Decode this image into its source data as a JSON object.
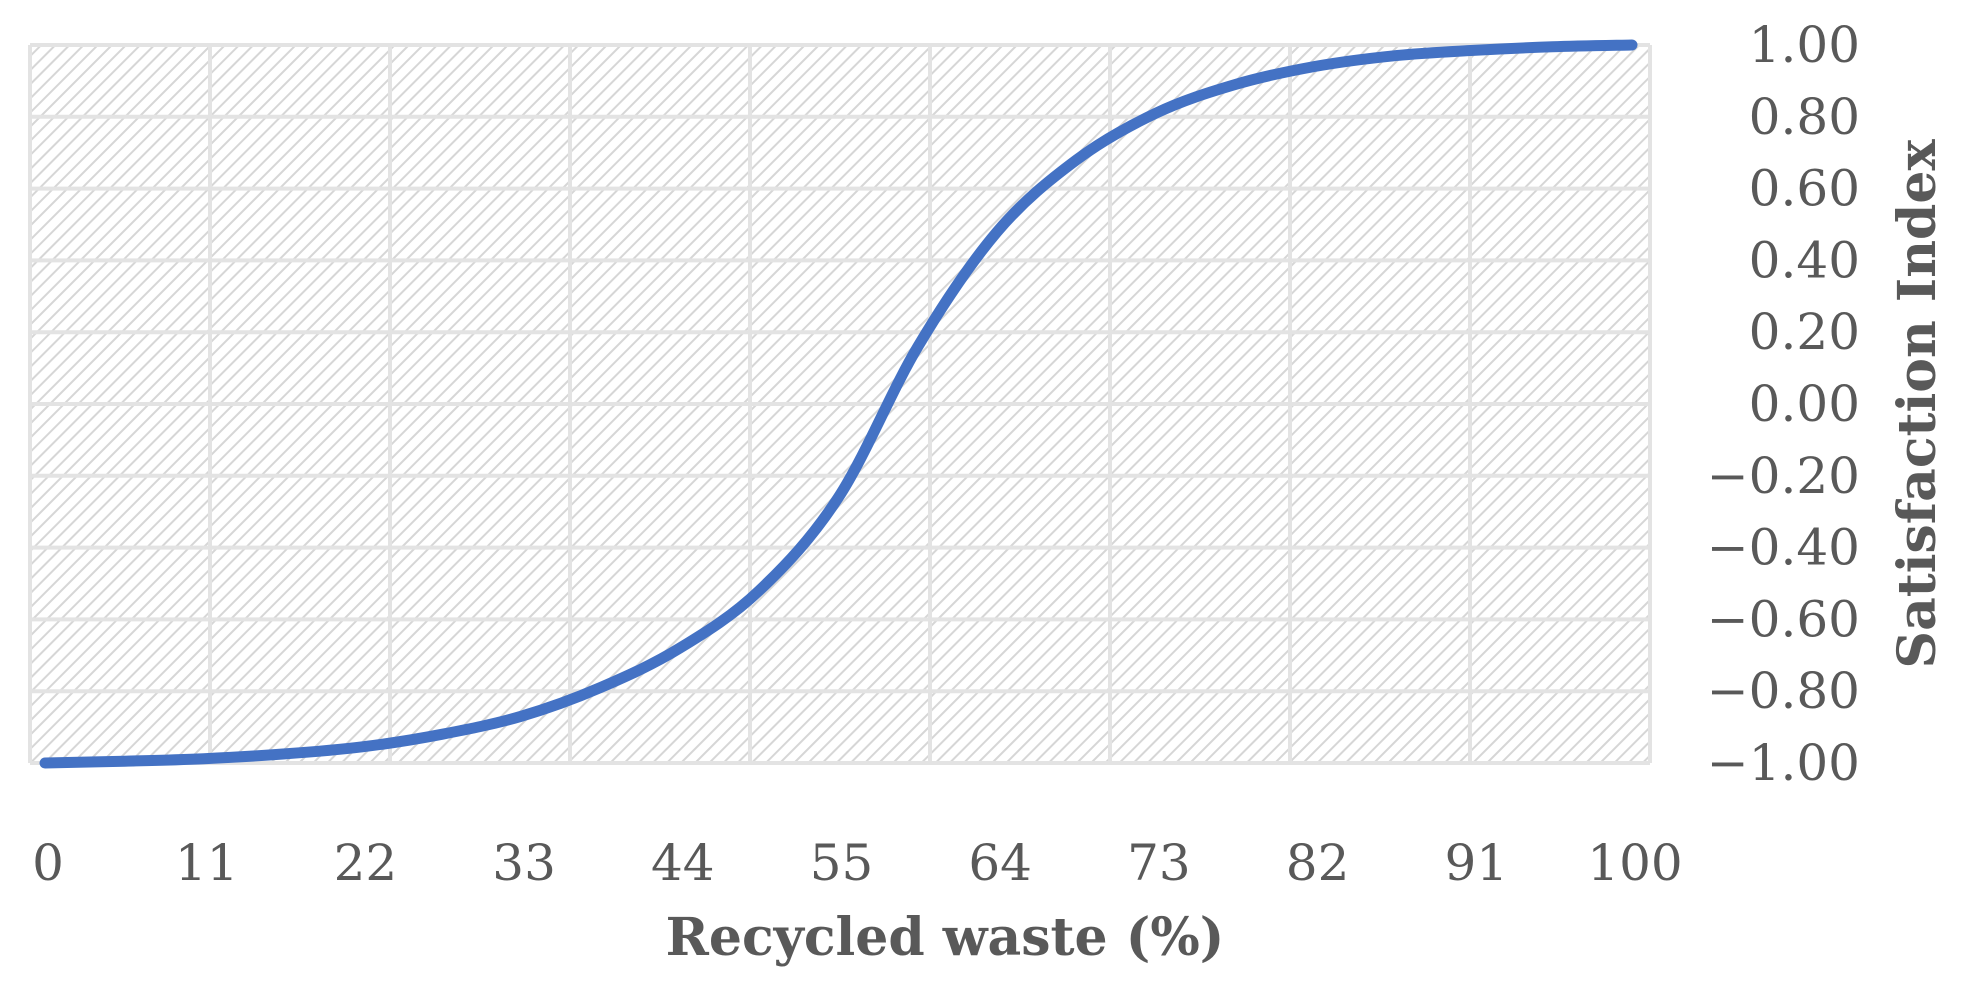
{
  "chart_data": {
    "type": "line",
    "title": "",
    "xlabel": "Recycled waste (%)",
    "ylabel": "Satisfaction Index",
    "x_ticks": [
      "0",
      "11",
      "22",
      "33",
      "44",
      "55",
      "64",
      "73",
      "82",
      "91",
      "100"
    ],
    "y_ticks": [
      "1.00",
      "0.80",
      "0.60",
      "0.40",
      "0.20",
      "0.00",
      "−0.20",
      "−0.40",
      "−0.60",
      "−0.80",
      "−1.00"
    ],
    "ylim": [
      -1.0,
      1.0
    ],
    "xlim": [
      0,
      100
    ],
    "y_axis_position": "right",
    "grid": true,
    "plot_background": "diagonal-hatch",
    "series": [
      {
        "color": "#4472C4",
        "x": [
          0,
          5,
          10,
          15,
          20,
          25,
          30,
          35,
          40,
          45,
          50,
          55,
          60,
          65,
          70,
          75,
          80,
          85,
          90,
          95,
          100
        ],
        "y": [
          -1.0,
          -0.995,
          -0.988,
          -0.975,
          -0.955,
          -0.92,
          -0.87,
          -0.79,
          -0.68,
          -0.52,
          -0.26,
          0.16,
          0.48,
          0.68,
          0.81,
          0.89,
          0.94,
          0.97,
          0.985,
          0.995,
          1.0
        ]
      }
    ]
  }
}
